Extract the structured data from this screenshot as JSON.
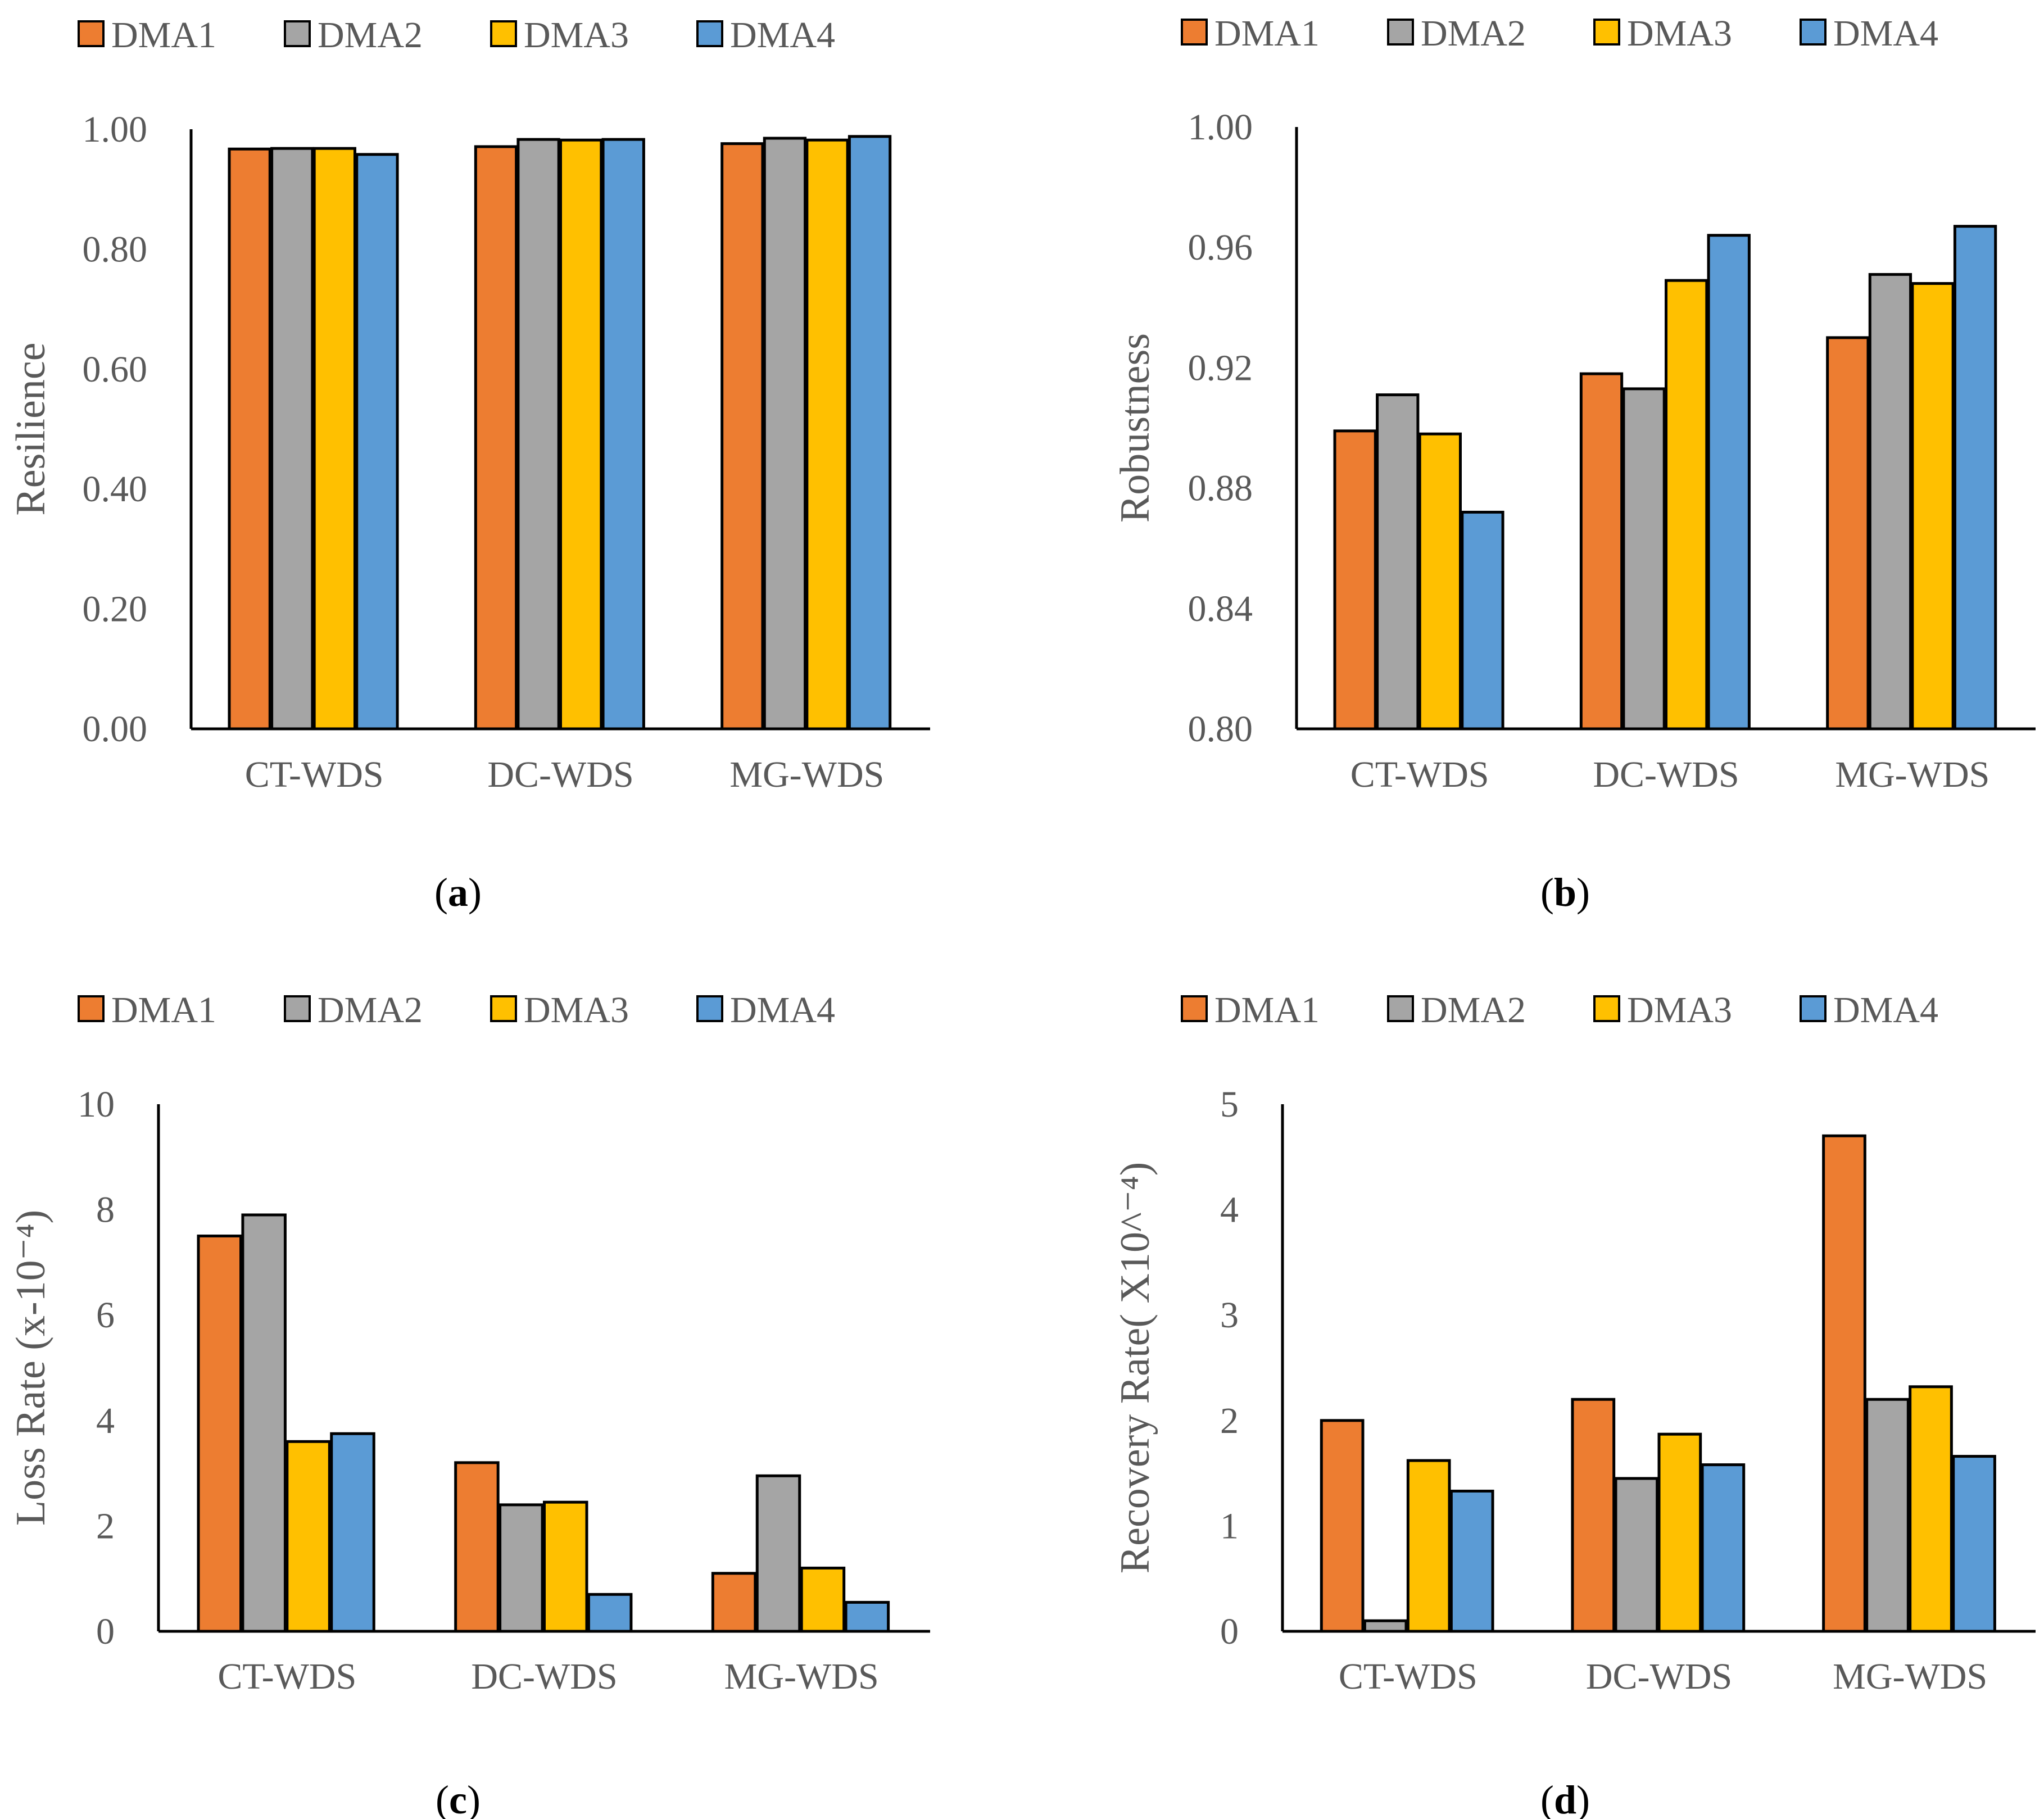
{
  "colors": {
    "DMA1": "#ED7D31",
    "DMA2": "#A5A5A5",
    "DMA3": "#FFC000",
    "DMA4": "#5B9BD5",
    "text": "#595959",
    "axis": "#000000"
  },
  "chart_data": [
    {
      "type": "bar",
      "panel_label": "a",
      "legend": [
        "DMA1",
        "DMA2",
        "DMA3",
        "DMA4"
      ],
      "categories": [
        "CT-WDS",
        "DC-WDS",
        "MG-WDS"
      ],
      "ylabel": "Resilience",
      "xlabel": "",
      "ylim": [
        0,
        1
      ],
      "yticks": [
        "0.00",
        "0.20",
        "0.40",
        "0.60",
        "0.80",
        "1.00"
      ],
      "series": [
        {
          "name": "DMA1",
          "values": [
            0.967,
            0.971,
            0.976
          ]
        },
        {
          "name": "DMA2",
          "values": [
            0.968,
            0.983,
            0.985
          ]
        },
        {
          "name": "DMA3",
          "values": [
            0.968,
            0.982,
            0.982
          ]
        },
        {
          "name": "DMA4",
          "values": [
            0.958,
            0.983,
            0.988
          ]
        }
      ]
    },
    {
      "type": "bar",
      "panel_label": "b",
      "legend": [
        "DMA1",
        "DMA2",
        "DMA3",
        "DMA4"
      ],
      "categories": [
        "CT-WDS",
        "DC-WDS",
        "MG-WDS"
      ],
      "ylabel": "Robustness",
      "xlabel": "",
      "ylim": [
        0.8,
        1.0
      ],
      "yticks": [
        "0.80",
        "0.84",
        "0.88",
        "0.92",
        "0.96",
        "1.00"
      ],
      "series": [
        {
          "name": "DMA1",
          "values": [
            0.899,
            0.918,
            0.93
          ]
        },
        {
          "name": "DMA2",
          "values": [
            0.911,
            0.913,
            0.951
          ]
        },
        {
          "name": "DMA3",
          "values": [
            0.898,
            0.949,
            0.948
          ]
        },
        {
          "name": "DMA4",
          "values": [
            0.872,
            0.964,
            0.967
          ]
        }
      ]
    },
    {
      "type": "bar",
      "panel_label": "c",
      "legend": [
        "DMA1",
        "DMA2",
        "DMA3",
        "DMA4"
      ],
      "categories": [
        "CT-WDS",
        "DC-WDS",
        "MG-WDS"
      ],
      "ylabel": "Loss Rate (x-10⁻⁴)",
      "xlabel": "",
      "ylim": [
        0,
        10
      ],
      "yticks": [
        "0",
        "2",
        "4",
        "6",
        "8",
        "10"
      ],
      "series": [
        {
          "name": "DMA1",
          "values": [
            7.5,
            3.2,
            1.1
          ]
        },
        {
          "name": "DMA2",
          "values": [
            7.9,
            2.4,
            2.95
          ]
        },
        {
          "name": "DMA3",
          "values": [
            3.6,
            2.45,
            1.2
          ]
        },
        {
          "name": "DMA4",
          "values": [
            3.75,
            0.7,
            0.55
          ]
        }
      ]
    },
    {
      "type": "bar",
      "panel_label": "d",
      "legend": [
        "DMA1",
        "DMA2",
        "DMA3",
        "DMA4"
      ],
      "categories": [
        "CT-WDS",
        "DC-WDS",
        "MG-WDS"
      ],
      "ylabel": "Recovery Rate( X10^⁻⁴)",
      "xlabel": "",
      "ylim": [
        0,
        5
      ],
      "yticks": [
        "0",
        "1",
        "2",
        "3",
        "4",
        "5"
      ],
      "series": [
        {
          "name": "DMA1",
          "values": [
            2.0,
            2.2,
            4.7
          ]
        },
        {
          "name": "DMA2",
          "values": [
            0.1,
            1.45,
            2.2
          ]
        },
        {
          "name": "DMA3",
          "values": [
            1.62,
            1.87,
            2.32
          ]
        },
        {
          "name": "DMA4",
          "values": [
            1.33,
            1.58,
            1.66
          ]
        }
      ]
    }
  ]
}
